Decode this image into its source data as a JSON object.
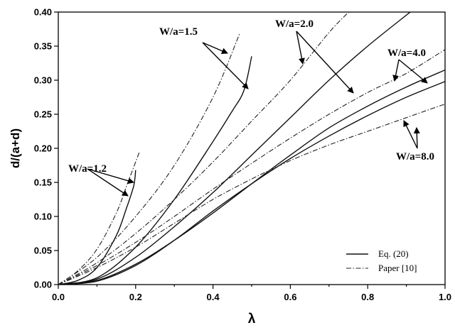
{
  "chart_data": {
    "type": "line",
    "xlabel": "λ",
    "ylabel": "d/(a+d)",
    "xlim": [
      0.0,
      1.0
    ],
    "ylim": [
      0.0,
      0.4
    ],
    "x_ticks": [
      "0.0",
      "0.2",
      "0.4",
      "0.6",
      "0.8",
      "1.0"
    ],
    "y_ticks": [
      "0.00",
      "0.05",
      "0.10",
      "0.15",
      "0.20",
      "0.25",
      "0.30",
      "0.35",
      "0.40"
    ],
    "grid": false,
    "legend": {
      "placement": "bottom-right",
      "entries": [
        {
          "label": "Eq. (20)",
          "style": "solid"
        },
        {
          "label": "Paper [10]",
          "style": "dash-dot"
        }
      ]
    },
    "annotations": [
      {
        "text": "W/a=1.2"
      },
      {
        "text": "W/a=1.5"
      },
      {
        "text": "W/a=2.0"
      },
      {
        "text": "W/a=4.0"
      },
      {
        "text": "W/a=8.0"
      }
    ],
    "series": [
      {
        "group": "W/a=1.2",
        "style": "solid",
        "points": [
          [
            0,
            0
          ],
          [
            0.05,
            0.006
          ],
          [
            0.1,
            0.025
          ],
          [
            0.15,
            0.072
          ],
          [
            0.175,
            0.11
          ],
          [
            0.195,
            0.145
          ],
          [
            0.2,
            0.168
          ]
        ]
      },
      {
        "group": "W/a=1.2",
        "style": "dash-dot",
        "points": [
          [
            0,
            0
          ],
          [
            0.05,
            0.02
          ],
          [
            0.1,
            0.052
          ],
          [
            0.15,
            0.105
          ],
          [
            0.18,
            0.15
          ],
          [
            0.21,
            0.195
          ]
        ]
      },
      {
        "group": "W/a=1.5",
        "style": "solid",
        "points": [
          [
            0,
            0
          ],
          [
            0.1,
            0.01
          ],
          [
            0.2,
            0.055
          ],
          [
            0.3,
            0.125
          ],
          [
            0.4,
            0.21
          ],
          [
            0.45,
            0.255
          ],
          [
            0.48,
            0.285
          ],
          [
            0.5,
            0.335
          ]
        ]
      },
      {
        "group": "W/a=1.5",
        "style": "dash-dot",
        "points": [
          [
            0,
            0
          ],
          [
            0.1,
            0.04
          ],
          [
            0.2,
            0.1
          ],
          [
            0.3,
            0.175
          ],
          [
            0.4,
            0.275
          ],
          [
            0.47,
            0.37
          ]
        ]
      },
      {
        "group": "W/a=2.0",
        "style": "solid",
        "points": [
          [
            0,
            0
          ],
          [
            0.1,
            0.008
          ],
          [
            0.2,
            0.04
          ],
          [
            0.3,
            0.085
          ],
          [
            0.4,
            0.135
          ],
          [
            0.5,
            0.19
          ],
          [
            0.6,
            0.245
          ],
          [
            0.7,
            0.3
          ],
          [
            0.8,
            0.35
          ],
          [
            0.91,
            0.4
          ]
        ]
      },
      {
        "group": "W/a=2.0",
        "style": "dash-dot",
        "points": [
          [
            0,
            0
          ],
          [
            0.1,
            0.032
          ],
          [
            0.2,
            0.075
          ],
          [
            0.3,
            0.125
          ],
          [
            0.4,
            0.18
          ],
          [
            0.5,
            0.24
          ],
          [
            0.6,
            0.3
          ],
          [
            0.7,
            0.37
          ],
          [
            0.76,
            0.405
          ]
        ]
      },
      {
        "group": "W/a=4.0",
        "style": "solid",
        "points": [
          [
            0,
            0
          ],
          [
            0.1,
            0.006
          ],
          [
            0.2,
            0.03
          ],
          [
            0.3,
            0.065
          ],
          [
            0.4,
            0.105
          ],
          [
            0.5,
            0.148
          ],
          [
            0.6,
            0.19
          ],
          [
            0.7,
            0.23
          ],
          [
            0.8,
            0.262
          ],
          [
            0.9,
            0.29
          ],
          [
            1.0,
            0.315
          ]
        ]
      },
      {
        "group": "W/a=4.0",
        "style": "dash-dot",
        "points": [
          [
            0,
            0
          ],
          [
            0.1,
            0.028
          ],
          [
            0.2,
            0.062
          ],
          [
            0.3,
            0.1
          ],
          [
            0.4,
            0.14
          ],
          [
            0.5,
            0.178
          ],
          [
            0.6,
            0.215
          ],
          [
            0.7,
            0.25
          ],
          [
            0.8,
            0.282
          ],
          [
            0.9,
            0.31
          ],
          [
            1.0,
            0.345
          ]
        ]
      },
      {
        "group": "W/a=8.0",
        "style": "solid",
        "points": [
          [
            0,
            0
          ],
          [
            0.1,
            0.005
          ],
          [
            0.2,
            0.028
          ],
          [
            0.3,
            0.065
          ],
          [
            0.4,
            0.108
          ],
          [
            0.5,
            0.148
          ],
          [
            0.6,
            0.185
          ],
          [
            0.7,
            0.218
          ],
          [
            0.8,
            0.248
          ],
          [
            0.9,
            0.275
          ],
          [
            1.0,
            0.298
          ]
        ]
      },
      {
        "group": "W/a=8.0",
        "style": "dash-dot",
        "points": [
          [
            0,
            0
          ],
          [
            0.1,
            0.025
          ],
          [
            0.2,
            0.055
          ],
          [
            0.3,
            0.09
          ],
          [
            0.4,
            0.125
          ],
          [
            0.5,
            0.155
          ],
          [
            0.6,
            0.182
          ],
          [
            0.7,
            0.205
          ],
          [
            0.8,
            0.225
          ],
          [
            0.9,
            0.245
          ],
          [
            1.0,
            0.265
          ]
        ]
      }
    ]
  }
}
